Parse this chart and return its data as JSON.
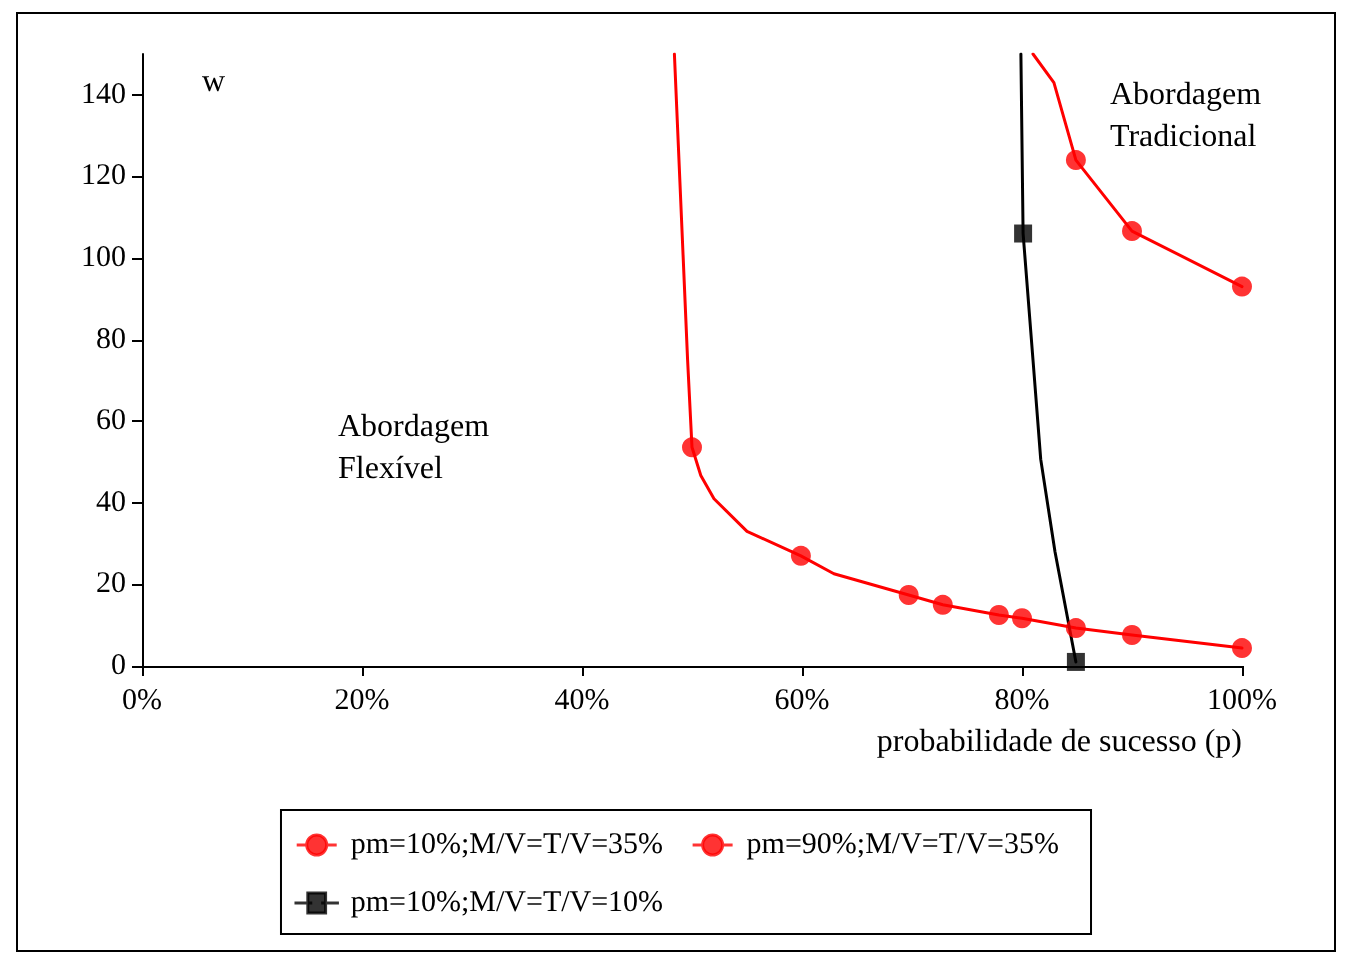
{
  "chart_data": {
    "type": "line",
    "xlabel": "probabilidade de sucesso (p)",
    "ylabel": "w",
    "xlim": [
      0,
      100
    ],
    "ylim": [
      0,
      150
    ],
    "xticks": [
      {
        "value": 0,
        "label": "0%"
      },
      {
        "value": 20,
        "label": "20%"
      },
      {
        "value": 40,
        "label": "40%"
      },
      {
        "value": 60,
        "label": "60%"
      },
      {
        "value": 80,
        "label": "80%"
      },
      {
        "value": 100,
        "label": "100%"
      }
    ],
    "yticks": [
      0,
      20,
      40,
      60,
      80,
      100,
      120,
      140
    ],
    "grid": false,
    "legend": "bottom",
    "line_style": "solid",
    "annotations": [
      "Abordagem\nFlexível",
      "Abordagem\nTradicional"
    ],
    "series": [
      {
        "marker": "none",
        "color": "#ff0000",
        "x": [
          81,
          82.9,
          84.9,
          90,
          100
        ],
        "values": [
          150,
          143,
          124,
          106.6,
          93
        ]
      },
      {
        "marker": "none",
        "color": "#ff0000",
        "x": [
          48.4,
          49.6,
          50,
          50.8,
          52,
          55,
          59.9,
          62.9,
          69.7,
          72.8,
          77.9,
          80,
          84.9,
          90,
          100
        ],
        "values": [
          150,
          75,
          53.6,
          46.7,
          41,
          33,
          27,
          22.6,
          17.4,
          15,
          12.5,
          11.7,
          9.3,
          7.6,
          4.4
        ]
      },
      {
        "marker": "none",
        "color": "#000000",
        "x": [
          79.9,
          80.1,
          81,
          81.7,
          83,
          84.9
        ],
        "values": [
          150,
          106,
          75,
          50.7,
          28,
          1
        ]
      },
      {
        "type": "scatter",
        "name": "pm=10%;M/V=T/V=35%",
        "marker": "circle",
        "color": "#ff0000",
        "x": [
          84.9,
          90,
          100
        ],
        "values": [
          124,
          106.6,
          93
        ]
      },
      {
        "type": "scatter",
        "name": "pm=90%;M/V=T/V=35%",
        "marker": "circle",
        "color": "#ff0000",
        "x": [
          50,
          59.9,
          69.7,
          72.8,
          77.9,
          80,
          84.9,
          90,
          100
        ],
        "values": [
          53.6,
          27,
          17.4,
          15,
          12.5,
          11.7,
          9.3,
          7.6,
          4.4
        ]
      },
      {
        "type": "scatter",
        "name": "pm=10%;M/V=T/V=10%",
        "marker": "square",
        "color": "#000000",
        "x": [
          80.1,
          84.9
        ],
        "values": [
          106,
          1
        ]
      }
    ]
  }
}
